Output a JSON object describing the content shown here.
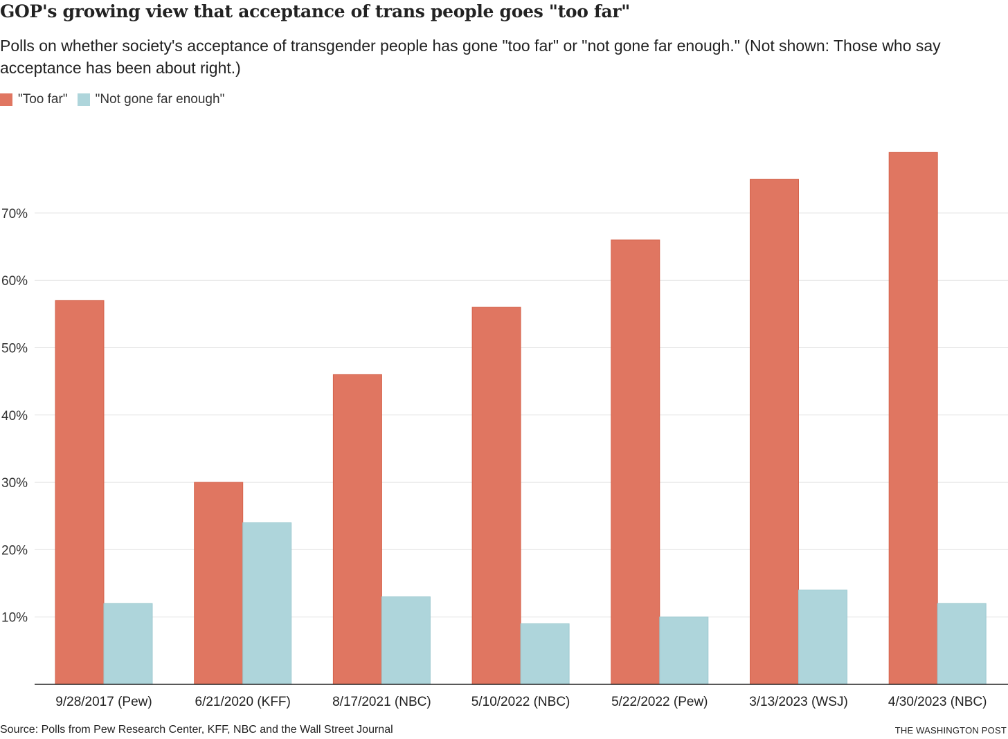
{
  "chart_data": {
    "type": "bar",
    "title": "GOP's growing view that acceptance of trans people goes \"too far\"",
    "subtitle": "Polls on whether society's acceptance of transgender people has gone \"too far\" or \"not gone far enough.\" (Not shown: Those who say acceptance has been about right.)",
    "categories": [
      "9/28/2017 (Pew)",
      "6/21/2020 (KFF)",
      "8/17/2021 (NBC)",
      "5/10/2022 (NBC)",
      "5/22/2022 (Pew)",
      "3/13/2023 (WSJ)",
      "4/30/2023 (NBC)"
    ],
    "series": [
      {
        "name": "\"Too far\"",
        "color": "#e07661",
        "values": [
          57,
          30,
          46,
          56,
          66,
          75,
          79
        ]
      },
      {
        "name": "\"Not gone far enough\"",
        "color": "#aed5db",
        "values": [
          12,
          24,
          13,
          9,
          10,
          14,
          12
        ]
      }
    ],
    "yticks": [
      10,
      20,
      30,
      40,
      50,
      60,
      70
    ],
    "ytick_labels": [
      "10%",
      "20%",
      "30%",
      "40%",
      "50%",
      "60%",
      "70%"
    ],
    "ylim": [
      0,
      80
    ],
    "grid": true,
    "legend_position": "top-left",
    "xlabel": "",
    "ylabel": ""
  },
  "source": "Source: Polls from Pew Research Center, KFF, NBC and the Wall Street Journal",
  "credit": "THE WASHINGTON POST"
}
